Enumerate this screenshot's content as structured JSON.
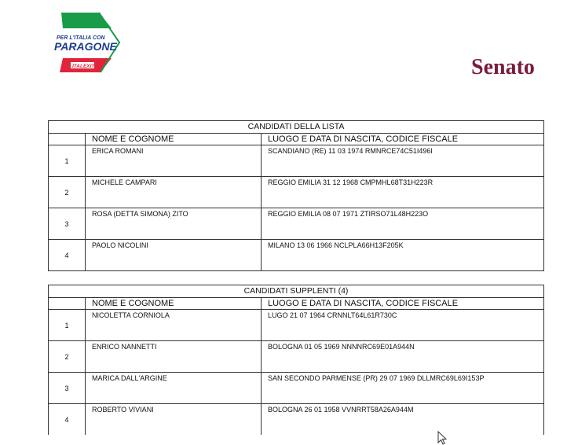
{
  "logo": {
    "text_top": "PER L'ITALIA CON",
    "text_main": "PARAGONE",
    "text_badge": "ITALEXIT"
  },
  "header": {
    "title": "Senato"
  },
  "tables": [
    {
      "title": "CANDIDATI DELLA LISTA",
      "col_name": "NOME E COGNOME",
      "col_info": "LUOGO E DATA DI NASCITA, CODICE FISCALE",
      "rows": [
        {
          "num": "1",
          "name": "ERICA  ROMANI",
          "info": "SCANDIANO (RE)  11 03 1974    RMNRCE74C51I496I"
        },
        {
          "num": "2",
          "name": "MICHELE  CAMPARI",
          "info": "REGGIO EMILIA  31 12 1968    CMPMHL68T31H223R"
        },
        {
          "num": "3",
          "name": "ROSA (DETTA SIMONA)  ZITO",
          "info": "REGGIO EMILIA  08 07 1971    ZTIRSO71L48H223O"
        },
        {
          "num": "4",
          "name": "PAOLO  NICOLINI",
          "info": "MILANO  13 06 1966    NCLPLA66H13F205K"
        }
      ]
    },
    {
      "title": "CANDIDATI SUPPLENTI (4)",
      "col_name": "NOME E COGNOME",
      "col_info": "LUOGO E DATA DI NASCITA, CODICE FISCALE",
      "rows": [
        {
          "num": "1",
          "name": "NICOLETTA  CORNIOLA",
          "info": "LUGO  21 07 1964    CRNNLT64L61R730C"
        },
        {
          "num": "2",
          "name": "ENRICO  NANNETTI",
          "info": "BOLOGNA  01 05 1969    NNNNRC69E01A944N"
        },
        {
          "num": "3",
          "name": "MARICA  DALL'ARGINE",
          "info": "SAN SECONDO PARMENSE (PR)  29 07 1969    DLLMRC69L69I153P"
        },
        {
          "num": "4",
          "name": "ROBERTO  VIVIANI",
          "info": "BOLOGNA  26 01 1958    VVNRRT58A26A944M"
        }
      ]
    }
  ]
}
